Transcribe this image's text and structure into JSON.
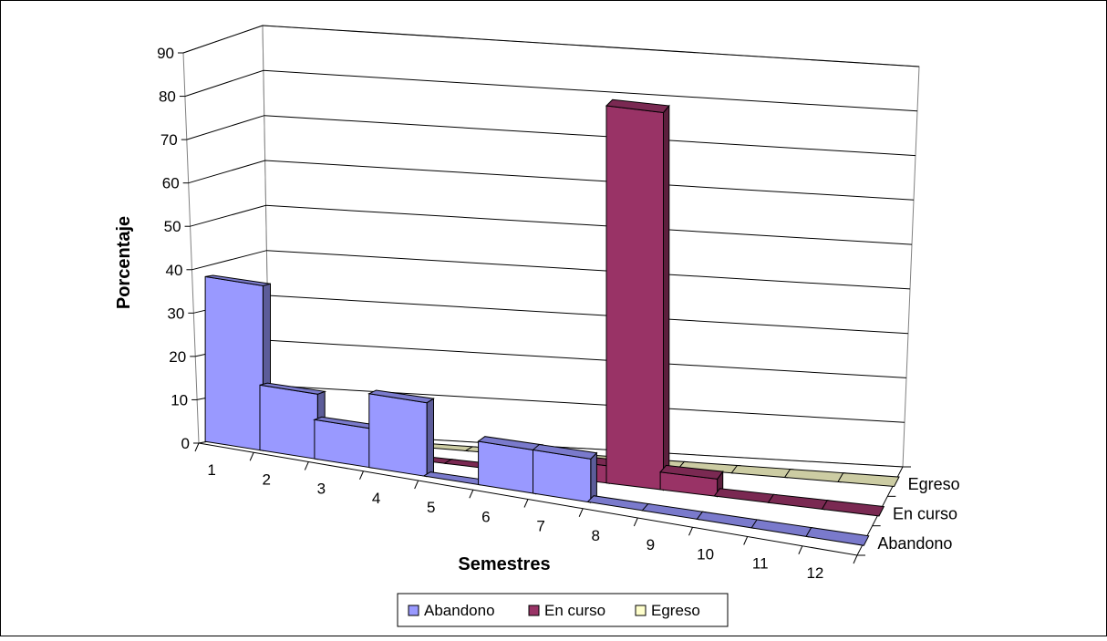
{
  "chart_data": {
    "type": "bar",
    "subtype": "3d-column",
    "title": "",
    "xlabel": "Semestres",
    "ylabel": "Porcentaje",
    "ylim": [
      0,
      90
    ],
    "yticks": [
      0,
      10,
      20,
      30,
      40,
      50,
      60,
      70,
      80,
      90
    ],
    "categories": [
      "1",
      "2",
      "3",
      "4",
      "5",
      "6",
      "7",
      "8",
      "9",
      "10",
      "11",
      "12"
    ],
    "series": [
      {
        "name": "Abandono",
        "color": "#9999FF",
        "values": [
          38,
          15,
          9,
          17,
          0,
          10,
          10,
          0,
          0,
          0,
          0,
          0
        ]
      },
      {
        "name": "En curso",
        "color": "#993366",
        "values": [
          0,
          0,
          0,
          0,
          0,
          0,
          4,
          87,
          4,
          0,
          0,
          0
        ]
      },
      {
        "name": "Egreso",
        "color": "#FFFFCC",
        "values": [
          0,
          0,
          0,
          0,
          0,
          0,
          0,
          0,
          0,
          0,
          0,
          0
        ]
      }
    ],
    "grid": true,
    "legend": "bottom"
  }
}
